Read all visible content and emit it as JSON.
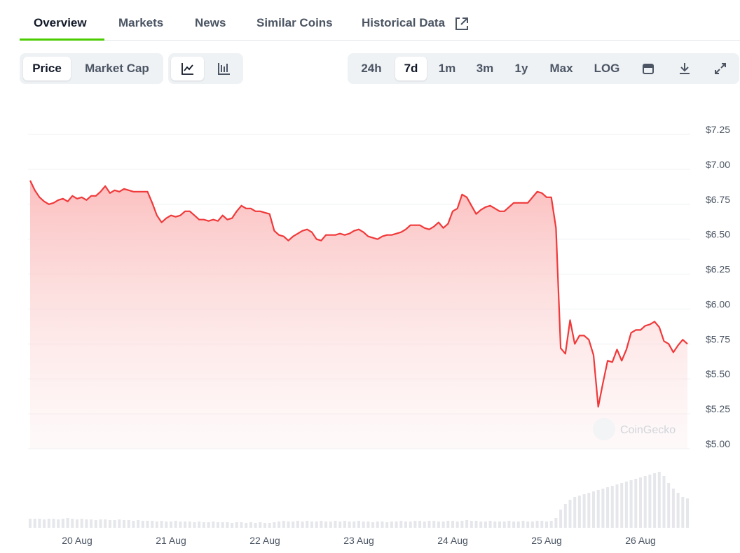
{
  "tabs": [
    "Overview",
    "Markets",
    "News",
    "Similar Coins",
    "Historical Data"
  ],
  "chart_toggles": [
    "Price",
    "Market Cap"
  ],
  "ranges": [
    "24h",
    "7d",
    "1m",
    "3m",
    "1y",
    "Max",
    "LOG"
  ],
  "watermark": "CoinGecko",
  "chart_data": {
    "type": "line",
    "color": "#f0393a",
    "grid": true,
    "ylim": [
      5,
      7.25
    ],
    "yticks": [
      {
        "value": 5,
        "label": "$5.00"
      },
      {
        "value": 5.25,
        "label": "$5.25"
      },
      {
        "value": 5.5,
        "label": "$5.50"
      },
      {
        "value": 5.75,
        "label": "$5.75"
      },
      {
        "value": 6,
        "label": "$6.00"
      },
      {
        "value": 6.25,
        "label": "$6.25"
      },
      {
        "value": 6.5,
        "label": "$6.50"
      },
      {
        "value": 6.75,
        "label": "$6.75"
      },
      {
        "value": 7,
        "label": "$7.00"
      },
      {
        "value": 7.25,
        "label": "$7.25"
      }
    ],
    "categories": [
      null,
      null,
      null,
      null,
      null,
      null,
      null,
      null,
      null,
      null,
      "20 Aug",
      null,
      null,
      null,
      null,
      null,
      null,
      null,
      null,
      null,
      null,
      null,
      null,
      null,
      null,
      null,
      null,
      null,
      null,
      null,
      "21 Aug",
      null,
      null,
      null,
      null,
      null,
      null,
      null,
      null,
      null,
      null,
      null,
      null,
      null,
      null,
      null,
      null,
      null,
      null,
      null,
      "22 Aug",
      null,
      null,
      null,
      null,
      null,
      null,
      null,
      null,
      null,
      null,
      null,
      null,
      null,
      null,
      null,
      null,
      null,
      null,
      null,
      "23 Aug",
      null,
      null,
      null,
      null,
      null,
      null,
      null,
      null,
      null,
      null,
      null,
      null,
      null,
      null,
      null,
      null,
      null,
      null,
      null,
      "24 Aug",
      null,
      null,
      null,
      null,
      null,
      null,
      null,
      null,
      null,
      null,
      null,
      null,
      null,
      null,
      null,
      null,
      null,
      null,
      null,
      "25 Aug",
      null,
      null,
      null,
      null,
      null,
      null,
      null,
      null,
      null,
      null,
      null,
      null,
      null,
      null,
      null,
      null,
      null,
      null,
      null,
      "26 Aug",
      null,
      null,
      null,
      null,
      null,
      null,
      null,
      null,
      null,
      null
    ],
    "values": [
      6.92,
      6.85,
      6.8,
      6.77,
      6.75,
      6.76,
      6.78,
      6.79,
      6.77,
      6.81,
      6.79,
      6.8,
      6.78,
      6.81,
      6.81,
      6.84,
      6.88,
      6.83,
      6.85,
      6.84,
      6.86,
      6.85,
      6.84,
      6.84,
      6.84,
      6.84,
      6.76,
      6.67,
      6.62,
      6.65,
      6.67,
      6.66,
      6.67,
      6.7,
      6.7,
      6.67,
      6.64,
      6.64,
      6.63,
      6.64,
      6.63,
      6.67,
      6.64,
      6.65,
      6.7,
      6.74,
      6.72,
      6.72,
      6.7,
      6.7,
      6.69,
      6.68,
      6.56,
      6.53,
      6.52,
      6.49,
      6.52,
      6.54,
      6.56,
      6.57,
      6.55,
      6.5,
      6.49,
      6.53,
      6.53,
      6.53,
      6.54,
      6.53,
      6.54,
      6.56,
      6.57,
      6.55,
      6.52,
      6.51,
      6.5,
      6.52,
      6.53,
      6.53,
      6.54,
      6.55,
      6.57,
      6.6,
      6.6,
      6.6,
      6.58,
      6.57,
      6.59,
      6.62,
      6.58,
      6.61,
      6.7,
      6.72,
      6.82,
      6.8,
      6.74,
      6.68,
      6.71,
      6.73,
      6.74,
      6.72,
      6.7,
      6.7,
      6.73,
      6.76,
      6.76,
      6.76,
      6.76,
      6.8,
      6.84,
      6.83,
      6.8,
      6.8,
      6.58,
      5.72,
      5.68,
      5.92,
      5.75,
      5.81,
      5.81,
      5.78,
      5.67,
      5.3,
      5.47,
      5.63,
      5.62,
      5.71,
      5.63,
      5.71,
      5.83,
      5.85,
      5.85,
      5.88,
      5.89,
      5.91,
      5.87,
      5.77,
      5.75,
      5.69,
      5.74,
      5.78,
      5.75
    ],
    "volume": [
      13,
      13,
      13,
      12,
      13,
      13,
      12,
      13,
      14,
      13,
      12,
      13,
      12,
      12,
      11,
      12,
      12,
      11,
      11,
      12,
      11,
      11,
      10,
      11,
      10,
      10,
      10,
      9,
      10,
      9,
      9,
      10,
      9,
      9,
      9,
      8,
      9,
      8,
      8,
      9,
      8,
      8,
      8,
      7,
      8,
      8,
      7,
      8,
      7,
      8,
      7,
      7,
      8,
      9,
      10,
      9,
      9,
      10,
      9,
      10,
      9,
      9,
      10,
      9,
      9,
      10,
      9,
      10,
      9,
      9,
      10,
      9,
      9,
      8,
      9,
      9,
      8,
      9,
      9,
      10,
      9,
      9,
      10,
      10,
      9,
      10,
      10,
      9,
      9,
      10,
      10,
      9,
      10,
      11,
      10,
      10,
      9,
      9,
      10,
      9,
      9,
      9,
      10,
      9,
      9,
      10,
      9,
      9,
      10,
      10,
      9,
      10,
      14,
      26,
      34,
      40,
      44,
      46,
      48,
      50,
      52,
      54,
      56,
      58,
      60,
      62,
      64,
      66,
      68,
      70,
      72,
      74,
      76,
      78,
      80,
      74,
      64,
      56,
      50,
      44,
      42
    ]
  }
}
